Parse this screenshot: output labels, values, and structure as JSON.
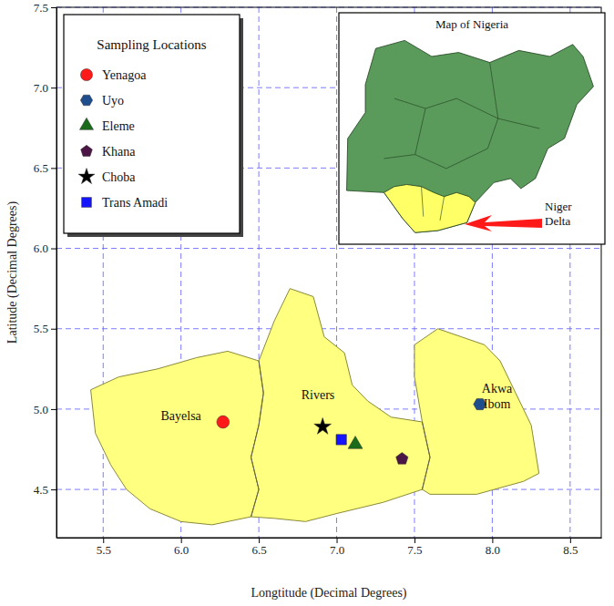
{
  "chart_data": {
    "type": "scatter",
    "xlabel": "Longtitude (Decimal Degrees)",
    "ylabel": "Latitude (Decimal Degrees)",
    "xlim": [
      5.2,
      8.7
    ],
    "ylim": [
      4.2,
      7.5
    ],
    "xticks": [
      5.5,
      {
        "value": 6,
        "label": "6.0"
      },
      6.5,
      {
        "value": 7,
        "label": "7.0"
      },
      7.5,
      {
        "value": 8,
        "label": "8.0"
      },
      8.5
    ],
    "yticks": [
      4.5,
      {
        "value": 5,
        "label": "5.0"
      },
      5.5,
      {
        "value": 6,
        "label": "6.0"
      },
      6.5,
      {
        "value": 7,
        "label": "7.0"
      },
      7.5
    ],
    "grid": true,
    "legend": "upper left",
    "legend_title": "Sampling Locations",
    "series": [
      {
        "name": "Yenagoa",
        "color": "#ff1a1a",
        "marker": "circle",
        "x": [
          6.27
        ],
        "values": [
          4.92
        ]
      },
      {
        "name": "Uyo",
        "color": "#1f4e8c",
        "marker": "hexagon",
        "x": [
          7.92
        ],
        "values": [
          5.03
        ]
      },
      {
        "name": "Eleme",
        "color": "#1a6b1a",
        "marker": "triangle",
        "x": [
          7.12
        ],
        "values": [
          4.78
        ]
      },
      {
        "name": "Khana",
        "color": "#4b1646",
        "marker": "pentagon",
        "x": [
          7.42
        ],
        "values": [
          4.69
        ]
      },
      {
        "name": "Choba",
        "color": "#000000",
        "marker": "star",
        "x": [
          6.91
        ],
        "values": [
          4.89
        ]
      },
      {
        "name": "Trans Amadi",
        "color": "#1414ff",
        "marker": "square",
        "x": [
          7.03
        ],
        "values": [
          4.81
        ]
      }
    ],
    "annotations": [
      {
        "text": "Bayelsa",
        "x": 6.0,
        "y": 4.93
      },
      {
        "text": "Rivers",
        "x": 6.88,
        "y": 5.06
      },
      {
        "text": "Akwa Ibom",
        "x": 8.03,
        "y": 5.1
      }
    ],
    "regions": [
      {
        "color": "#ffff80",
        "coords": [
          [
            5.42,
            5.12
          ],
          [
            5.6,
            5.2
          ],
          [
            5.85,
            5.25
          ],
          [
            6.1,
            5.32
          ],
          [
            6.3,
            5.36
          ],
          [
            6.5,
            5.3
          ],
          [
            6.53,
            5.1
          ],
          [
            6.5,
            4.9
          ],
          [
            6.45,
            4.7
          ],
          [
            6.5,
            4.5
          ],
          [
            6.45,
            4.33
          ],
          [
            6.2,
            4.28
          ],
          [
            6.0,
            4.3
          ],
          [
            5.8,
            4.38
          ],
          [
            5.65,
            4.5
          ],
          [
            5.55,
            4.65
          ],
          [
            5.45,
            4.85
          ],
          [
            5.42,
            5.12
          ]
        ]
      },
      {
        "color": "#ffff80",
        "coords": [
          [
            6.5,
            5.3
          ],
          [
            6.6,
            5.55
          ],
          [
            6.7,
            5.75
          ],
          [
            6.85,
            5.7
          ],
          [
            6.92,
            5.45
          ],
          [
            7.05,
            5.35
          ],
          [
            7.1,
            5.15
          ],
          [
            7.2,
            5.05
          ],
          [
            7.35,
            4.95
          ],
          [
            7.55,
            4.92
          ],
          [
            7.6,
            4.7
          ],
          [
            7.55,
            4.5
          ],
          [
            7.3,
            4.42
          ],
          [
            7.0,
            4.35
          ],
          [
            6.8,
            4.3
          ],
          [
            6.6,
            4.32
          ],
          [
            6.45,
            4.33
          ],
          [
            6.5,
            4.5
          ],
          [
            6.45,
            4.7
          ],
          [
            6.5,
            4.9
          ],
          [
            6.53,
            5.1
          ],
          [
            6.5,
            5.3
          ]
        ]
      },
      {
        "color": "#ffff80",
        "coords": [
          [
            7.55,
            4.92
          ],
          [
            7.5,
            5.2
          ],
          [
            7.5,
            5.4
          ],
          [
            7.65,
            5.5
          ],
          [
            7.8,
            5.45
          ],
          [
            7.95,
            5.4
          ],
          [
            8.05,
            5.3
          ],
          [
            8.15,
            5.1
          ],
          [
            8.25,
            4.9
          ],
          [
            8.3,
            4.6
          ],
          [
            8.2,
            4.55
          ],
          [
            7.9,
            4.47
          ],
          [
            7.6,
            4.47
          ],
          [
            7.55,
            4.5
          ],
          [
            7.6,
            4.7
          ],
          [
            7.55,
            4.92
          ]
        ]
      }
    ],
    "inset": {
      "title": "Map of Nigeria",
      "label": "Niger Delta"
    }
  }
}
